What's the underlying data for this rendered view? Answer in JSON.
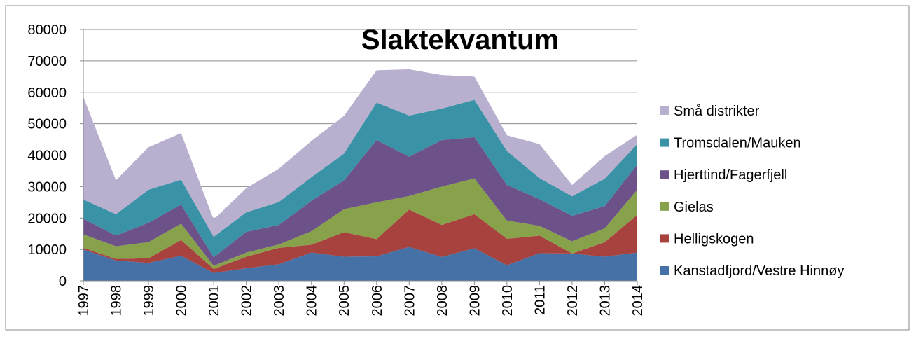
{
  "chart_data": {
    "type": "stacked-area",
    "title": "Slaktekvantum",
    "categories": [
      "1997",
      "1998",
      "1999",
      "2000",
      "2001",
      "2002",
      "2003",
      "2004",
      "2005",
      "2006",
      "2007",
      "2008",
      "2009",
      "2010",
      "2011",
      "2012",
      "2013",
      "2014"
    ],
    "series": [
      {
        "name": "Kanstadfjord/Vestre Hinnøy",
        "color": "#4671a6",
        "values": [
          10000,
          6500,
          5700,
          8000,
          2500,
          4000,
          5300,
          9000,
          7700,
          7800,
          10800,
          7600,
          10400,
          5000,
          8800,
          8700,
          7700,
          9000
        ]
      },
      {
        "name": "Helligskogen",
        "color": "#a7423f",
        "values": [
          500,
          500,
          1500,
          5000,
          1300,
          3700,
          5200,
          2500,
          7800,
          5500,
          11900,
          10200,
          10800,
          8400,
          5600,
          0,
          4600,
          12000
        ]
      },
      {
        "name": "Gielas",
        "color": "#87a24b",
        "values": [
          4300,
          4000,
          5100,
          5200,
          1000,
          1300,
          1100,
          4300,
          7300,
          11700,
          4300,
          12200,
          11400,
          5800,
          3100,
          3900,
          4400,
          8000
        ]
      },
      {
        "name": "Hjerttind/Fagerfjell",
        "color": "#6d5289",
        "values": [
          5000,
          3400,
          6200,
          6100,
          2700,
          6600,
          6200,
          9700,
          9200,
          19800,
          12500,
          14800,
          13100,
          11300,
          8500,
          8100,
          7100,
          8000
        ]
      },
      {
        "name": "Tromsdalen/Mauken",
        "color": "#3a92a6",
        "values": [
          6100,
          6800,
          10500,
          7900,
          6500,
          6200,
          7300,
          7500,
          8500,
          11900,
          13100,
          10000,
          11900,
          10800,
          6700,
          6200,
          8700,
          6500
        ]
      },
      {
        "name": "Små distrikter",
        "color": "#b9afcf",
        "values": [
          32600,
          10800,
          13500,
          14800,
          5500,
          7700,
          10600,
          11500,
          12000,
          10300,
          14700,
          10700,
          7400,
          5000,
          10800,
          3600,
          7200,
          3000
        ]
      }
    ],
    "ylim": [
      0,
      80000
    ],
    "yticks": [
      0,
      10000,
      20000,
      30000,
      40000,
      50000,
      60000,
      70000,
      80000
    ],
    "grid": true,
    "legend": "right"
  }
}
